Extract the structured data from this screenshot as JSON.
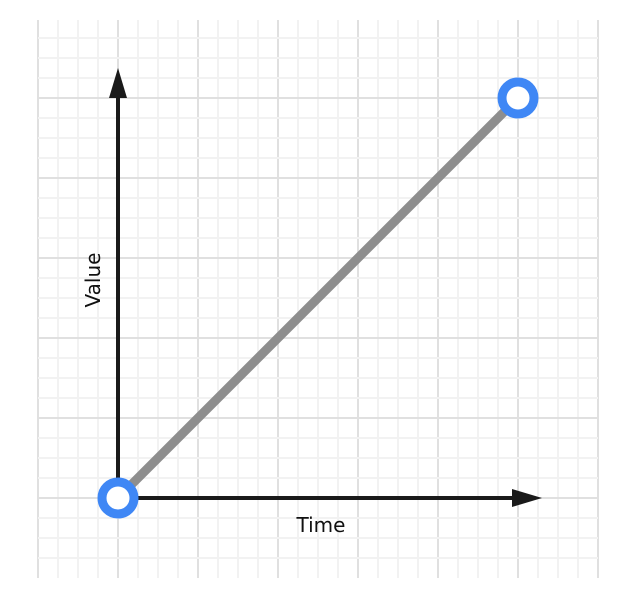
{
  "chart_data": {
    "type": "line",
    "xlabel": "Time",
    "ylabel": "Value",
    "grid": true,
    "series": [
      {
        "x": [
          0,
          5
        ],
        "y": [
          0,
          5
        ]
      }
    ],
    "xlim": [
      0,
      5.3
    ],
    "ylim": [
      0,
      5.4
    ]
  },
  "colors": {
    "line": "#8e8e8e",
    "marker": "#3f87f5",
    "axis": "#1a1a1a",
    "grid_major": "#e0e0e0",
    "grid_minor": "#f2f2f2"
  }
}
